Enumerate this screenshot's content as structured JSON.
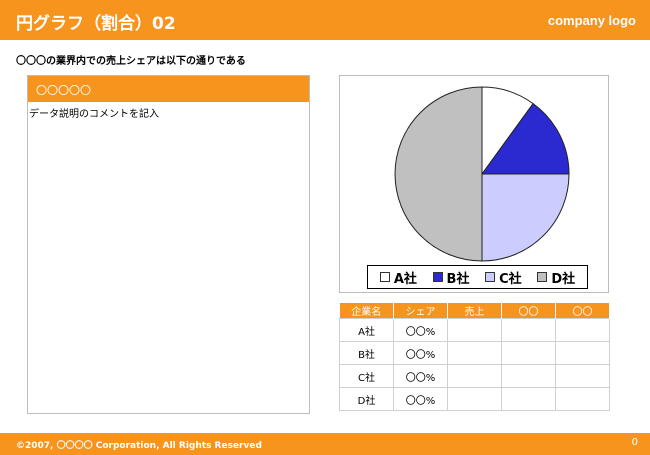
{
  "header": {
    "title": "円グラフ（割合）02",
    "logo": "company logo"
  },
  "intro": "〇〇〇の業界内での売上シェアは以下の通りである",
  "left_panel": {
    "heading": "〇〇〇〇〇",
    "comment": "データ説明のコメントを記入"
  },
  "legend": [
    {
      "label": "A社",
      "color": "#ffffff"
    },
    {
      "label": "B社",
      "color": "#2a2ad0"
    },
    {
      "label": "C社",
      "color": "#ccccff"
    },
    {
      "label": "D社",
      "color": "#c0c0c0"
    }
  ],
  "chart_data": {
    "type": "pie",
    "title": "",
    "categories": [
      "A社",
      "B社",
      "C社",
      "D社"
    ],
    "values": [
      10,
      15,
      25,
      50
    ],
    "colors": [
      "#ffffff",
      "#2a2ad0",
      "#ccccff",
      "#c0c0c0"
    ],
    "legend_position": "bottom"
  },
  "table": {
    "headers": [
      "企業名",
      "シェア",
      "売上",
      "〇〇",
      "〇〇"
    ],
    "rows": [
      [
        "A社",
        "〇〇%",
        "",
        "",
        ""
      ],
      [
        "B社",
        "〇〇%",
        "",
        "",
        ""
      ],
      [
        "C社",
        "〇〇%",
        "",
        "",
        ""
      ],
      [
        "D社",
        "〇〇%",
        "",
        "",
        ""
      ]
    ]
  },
  "footer": {
    "copyright": "©2007, 〇〇〇〇 Corporation, All Rights Reserved",
    "page": "0"
  }
}
